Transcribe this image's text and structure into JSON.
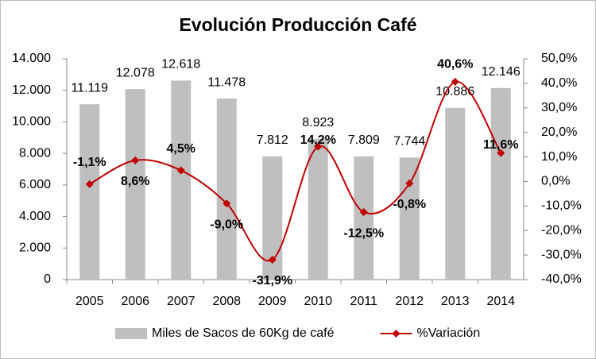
{
  "chart_data": {
    "type": "combo",
    "title": "Evolución Producción Café",
    "categories": [
      "2005",
      "2006",
      "2007",
      "2008",
      "2009",
      "2010",
      "2011",
      "2012",
      "2013",
      "2014"
    ],
    "series": [
      {
        "name": "Miles de Sacos de 60Kg de café",
        "type": "bar",
        "color": "#bfbfbf",
        "values": [
          11119,
          12078,
          12618,
          11478,
          7812,
          8923,
          7809,
          7744,
          10886,
          12146
        ],
        "value_labels": [
          "11.119",
          "12.078",
          "12.618",
          "11.478",
          "7.812",
          "8.923",
          "7.809",
          "7.744",
          "10.886",
          "12.146"
        ]
      },
      {
        "name": "%Variación",
        "type": "line",
        "axis": "y2",
        "color": "#c00000",
        "values": [
          -1.1,
          8.6,
          4.5,
          -9.0,
          -31.9,
          14.2,
          -12.5,
          -0.8,
          40.6,
          11.6
        ],
        "value_labels": [
          "-1,1%",
          "8,6%",
          "4,5%",
          "-9,0%",
          "-31,9%",
          "14,2%",
          "-12,5%",
          "-0,8%",
          "40,6%",
          "11,6%"
        ]
      }
    ],
    "ylim": [
      0,
      14000
    ],
    "yticks": [
      0,
      {
        "value": 2000,
        "label": "2.000"
      },
      {
        "value": 4000,
        "label": "4.000"
      },
      {
        "value": 6000,
        "label": "6.000"
      },
      {
        "value": 8000,
        "label": "8.000"
      },
      {
        "value": 10000,
        "label": "10.000"
      },
      {
        "value": 12000,
        "label": "12.000"
      },
      {
        "value": 14000,
        "label": "14.000"
      }
    ],
    "y2lim": [
      -40,
      50
    ],
    "y2ticks": [
      {
        "value": -40,
        "label": "-40,0%"
      },
      {
        "value": -30,
        "label": "-30,0%"
      },
      {
        "value": -20,
        "label": "-20,0%"
      },
      {
        "value": -10,
        "label": "-10,0%"
      },
      {
        "value": 0,
        "label": "0,0%"
      },
      {
        "value": 10,
        "label": "10,0%"
      },
      {
        "value": 20,
        "label": "20,0%"
      },
      {
        "value": 30,
        "label": "30,0%"
      },
      {
        "value": 40,
        "label": "40,0%"
      },
      {
        "value": 50,
        "label": "50,0%"
      }
    ],
    "grid": false,
    "legend": "bottom"
  }
}
